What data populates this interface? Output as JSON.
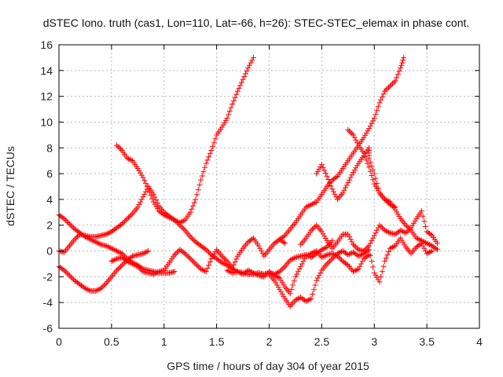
{
  "colors": {
    "series": "#ff0000",
    "axis": "#000000",
    "grid": "#b8b8b8"
  },
  "chart_data": {
    "type": "scatter",
    "title": "dSTEC Iono. truth (cas1, Lon=110, Lat=-66, h=26): STEC-STEC_elemax in phase cont.",
    "xlabel": "GPS time / hours of day 304 of year 2015",
    "ylabel": "dSTEC  / TECUs",
    "xlim": [
      0,
      4
    ],
    "ylim": [
      -6,
      16
    ],
    "xticks": [
      0,
      0.5,
      1,
      1.5,
      2,
      2.5,
      3,
      3.5,
      4
    ],
    "xtick_labels": [
      "0",
      "0.5",
      "1",
      "1.5",
      "2",
      "2.5",
      "3",
      "3.5",
      "4"
    ],
    "yticks": [
      -6,
      -4,
      -2,
      0,
      2,
      4,
      6,
      8,
      10,
      12,
      14,
      16
    ],
    "ytick_labels": [
      "-6",
      "-4",
      "-2",
      "0",
      "2",
      "4",
      "6",
      "8",
      "10",
      "12",
      "14",
      "16"
    ],
    "grid": true,
    "marker": "plus",
    "series": [
      {
        "points": [
          [
            0.0,
            2.8
          ],
          [
            0.05,
            2.5
          ],
          [
            0.1,
            2.1
          ],
          [
            0.15,
            1.7
          ],
          [
            0.2,
            1.4
          ],
          [
            0.25,
            1.1
          ],
          [
            0.3,
            0.9
          ],
          [
            0.35,
            0.7
          ],
          [
            0.4,
            0.5
          ],
          [
            0.45,
            0.4
          ],
          [
            0.5,
            0.2
          ],
          [
            0.55,
            0.0
          ],
          [
            0.6,
            -0.2
          ],
          [
            0.65,
            -0.6
          ],
          [
            0.7,
            -0.9
          ],
          [
            0.75,
            -1.1
          ],
          [
            0.8,
            -1.4
          ],
          [
            0.85,
            -1.5
          ],
          [
            0.9,
            -1.6
          ],
          [
            0.95,
            -1.7
          ],
          [
            1.0,
            -1.7
          ],
          [
            1.05,
            -1.7
          ],
          [
            1.1,
            -1.6
          ]
        ]
      },
      {
        "points": [
          [
            0.0,
            -1.2
          ],
          [
            0.05,
            -1.5
          ],
          [
            0.1,
            -1.9
          ],
          [
            0.15,
            -2.3
          ],
          [
            0.2,
            -2.6
          ],
          [
            0.25,
            -2.9
          ],
          [
            0.3,
            -3.1
          ],
          [
            0.35,
            -3.1
          ],
          [
            0.4,
            -2.9
          ],
          [
            0.45,
            -2.5
          ],
          [
            0.5,
            -2.0
          ],
          [
            0.55,
            -1.5
          ],
          [
            0.6,
            -1.1
          ],
          [
            0.65,
            -0.7
          ],
          [
            0.7,
            -0.4
          ],
          [
            0.75,
            -0.3
          ],
          [
            0.8,
            -0.2
          ],
          [
            0.85,
            0.0
          ]
        ]
      },
      {
        "points": [
          [
            0.0,
            0.0
          ],
          [
            0.05,
            -0.1
          ],
          [
            0.1,
            0.4
          ],
          [
            0.15,
            0.9
          ],
          [
            0.2,
            1.3
          ],
          [
            0.25,
            1.2
          ],
          [
            0.3,
            1.1
          ],
          [
            0.35,
            1.1
          ],
          [
            0.4,
            1.2
          ],
          [
            0.45,
            1.3
          ],
          [
            0.5,
            1.5
          ],
          [
            0.55,
            1.8
          ],
          [
            0.6,
            2.1
          ],
          [
            0.65,
            2.5
          ],
          [
            0.7,
            2.9
          ],
          [
            0.75,
            3.4
          ],
          [
            0.8,
            4.2
          ],
          [
            0.85,
            5.0
          ],
          [
            0.9,
            4.4
          ],
          [
            0.95,
            3.5
          ],
          [
            1.0,
            3.0
          ],
          [
            1.05,
            2.7
          ],
          [
            1.1,
            2.4
          ],
          [
            1.15,
            2.2
          ],
          [
            1.2,
            2.4
          ],
          [
            1.25,
            3.0
          ],
          [
            1.3,
            4.0
          ],
          [
            1.35,
            5.5
          ],
          [
            1.4,
            6.8
          ],
          [
            1.45,
            7.8
          ],
          [
            1.5,
            9.0
          ],
          [
            1.55,
            9.6
          ],
          [
            1.6,
            10.3
          ],
          [
            1.65,
            11.4
          ],
          [
            1.7,
            12.4
          ],
          [
            1.75,
            13.3
          ],
          [
            1.8,
            14.2
          ],
          [
            1.85,
            15.0
          ]
        ]
      },
      {
        "points": [
          [
            0.55,
            8.2
          ],
          [
            0.6,
            7.8
          ],
          [
            0.65,
            7.2
          ],
          [
            0.7,
            7.0
          ],
          [
            0.75,
            6.4
          ],
          [
            0.8,
            5.7
          ],
          [
            0.85,
            4.8
          ],
          [
            0.9,
            3.8
          ],
          [
            0.95,
            3.1
          ],
          [
            1.0,
            2.8
          ],
          [
            1.05,
            2.6
          ],
          [
            1.1,
            2.4
          ],
          [
            1.15,
            2.0
          ],
          [
            1.2,
            1.6
          ],
          [
            1.25,
            1.1
          ],
          [
            1.3,
            0.7
          ],
          [
            1.35,
            0.4
          ],
          [
            1.4,
            0.1
          ],
          [
            1.45,
            -0.3
          ],
          [
            1.5,
            -0.6
          ],
          [
            1.55,
            -0.9
          ],
          [
            1.6,
            -1.1
          ],
          [
            1.65,
            -1.4
          ],
          [
            1.7,
            -1.6
          ],
          [
            1.75,
            -1.7
          ],
          [
            1.8,
            -1.8
          ],
          [
            1.85,
            -1.8
          ],
          [
            1.9,
            -1.7
          ],
          [
            1.95,
            -1.8
          ],
          [
            2.0,
            -1.7
          ],
          [
            2.05,
            -1.8
          ],
          [
            2.1,
            -1.6
          ],
          [
            2.15,
            -1.2
          ],
          [
            2.2,
            -0.7
          ],
          [
            2.25,
            -0.5
          ],
          [
            2.3,
            -0.4
          ],
          [
            2.35,
            -0.3
          ],
          [
            2.4,
            -0.5
          ],
          [
            2.45,
            -0.2
          ],
          [
            2.5,
            0.1
          ],
          [
            2.55,
            0.3
          ],
          [
            2.6,
            0.8
          ]
        ]
      },
      {
        "points": [
          [
            0.5,
            -0.8
          ],
          [
            0.55,
            -0.6
          ],
          [
            0.6,
            -0.5
          ],
          [
            0.65,
            -0.8
          ],
          [
            0.7,
            -1.0
          ],
          [
            0.75,
            -1.2
          ],
          [
            0.8,
            -1.6
          ],
          [
            0.85,
            -1.7
          ],
          [
            0.9,
            -1.8
          ],
          [
            0.95,
            -1.6
          ],
          [
            1.0,
            -1.5
          ],
          [
            1.05,
            -0.9
          ],
          [
            1.1,
            -0.3
          ],
          [
            1.15,
            0.1
          ],
          [
            1.2,
            -0.2
          ],
          [
            1.25,
            -0.6
          ],
          [
            1.3,
            -1.0
          ],
          [
            1.35,
            -1.4
          ],
          [
            1.4,
            -1.6
          ],
          [
            1.45,
            -0.6
          ],
          [
            1.5,
            0.1
          ],
          [
            1.55,
            -0.4
          ],
          [
            1.6,
            -0.8
          ],
          [
            1.65,
            -1.3
          ],
          [
            1.7,
            -0.4
          ],
          [
            1.75,
            0.2
          ],
          [
            1.8,
            0.7
          ],
          [
            1.85,
            1.0
          ],
          [
            1.9,
            0.4
          ],
          [
            1.95,
            -0.4
          ],
          [
            2.0,
            0.1
          ],
          [
            2.05,
            0.6
          ],
          [
            2.1,
            0.9
          ],
          [
            2.15,
            0.6
          ]
        ]
      },
      {
        "points": [
          [
            2.1,
            0.9
          ],
          [
            2.15,
            1.2
          ],
          [
            2.2,
            1.7
          ],
          [
            2.25,
            2.2
          ],
          [
            2.3,
            2.8
          ],
          [
            2.35,
            3.4
          ],
          [
            2.4,
            3.6
          ],
          [
            2.45,
            3.8
          ],
          [
            2.5,
            4.4
          ],
          [
            2.55,
            5.0
          ],
          [
            2.6,
            5.5
          ],
          [
            2.65,
            5.8
          ],
          [
            2.7,
            6.4
          ],
          [
            2.75,
            7.0
          ],
          [
            2.8,
            7.6
          ],
          [
            2.85,
            8.2
          ],
          [
            2.9,
            8.8
          ],
          [
            2.95,
            9.5
          ],
          [
            3.0,
            10.3
          ],
          [
            3.05,
            11.5
          ],
          [
            3.1,
            12.4
          ],
          [
            3.15,
            12.8
          ],
          [
            3.2,
            13.2
          ],
          [
            3.25,
            14.2
          ],
          [
            3.28,
            15.0
          ]
        ]
      },
      {
        "points": [
          [
            2.45,
            6.0
          ],
          [
            2.5,
            6.7
          ],
          [
            2.55,
            5.8
          ],
          [
            2.6,
            4.8
          ],
          [
            2.65,
            4.0
          ],
          [
            2.7,
            4.5
          ],
          [
            2.75,
            5.3
          ],
          [
            2.8,
            6.1
          ],
          [
            2.85,
            6.8
          ],
          [
            2.9,
            7.4
          ],
          [
            2.95,
            8.0
          ],
          [
            2.95,
            7.2
          ],
          [
            3.0,
            6.0
          ],
          [
            3.05,
            4.5
          ],
          [
            3.1,
            4.0
          ],
          [
            3.15,
            3.8
          ],
          [
            3.2,
            3.2
          ],
          [
            3.25,
            2.5
          ],
          [
            3.3,
            2.0
          ],
          [
            3.35,
            1.6
          ],
          [
            3.4,
            1.0
          ],
          [
            3.45,
            0.8
          ],
          [
            3.5,
            0.6
          ],
          [
            3.55,
            0.4
          ],
          [
            3.6,
            0.1
          ]
        ]
      },
      {
        "points": [
          [
            2.75,
            9.4
          ],
          [
            2.8,
            9.0
          ],
          [
            2.85,
            8.2
          ],
          [
            2.9,
            7.6
          ],
          [
            2.95,
            6.5
          ],
          [
            3.0,
            5.2
          ],
          [
            3.05,
            4.5
          ],
          [
            3.1,
            4.0
          ],
          [
            3.15,
            3.6
          ],
          [
            3.2,
            3.4
          ]
        ]
      },
      {
        "points": [
          [
            2.3,
            0.5
          ],
          [
            2.35,
            1.0
          ],
          [
            2.4,
            1.6
          ],
          [
            2.45,
            2.0
          ],
          [
            2.5,
            1.5
          ],
          [
            2.55,
            0.8
          ],
          [
            2.6,
            0.2
          ],
          [
            2.65,
            0.7
          ],
          [
            2.7,
            1.3
          ],
          [
            2.75,
            1.3
          ],
          [
            2.8,
            0.5
          ],
          [
            2.85,
            0.1
          ],
          [
            2.9,
            0.0
          ],
          [
            2.95,
            0.4
          ],
          [
            3.0,
            1.2
          ],
          [
            3.05,
            2.0
          ],
          [
            3.1,
            1.6
          ],
          [
            3.15,
            1.4
          ],
          [
            3.2,
            1.3
          ],
          [
            3.25,
            1.6
          ],
          [
            3.3,
            1.4
          ],
          [
            3.35,
            1.8
          ],
          [
            3.4,
            2.5
          ],
          [
            3.45,
            3.1
          ],
          [
            3.5,
            1.5
          ],
          [
            3.55,
            1.2
          ],
          [
            3.6,
            0.6
          ]
        ]
      },
      {
        "points": [
          [
            2.0,
            -1.8
          ],
          [
            2.05,
            -2.3
          ],
          [
            2.1,
            -3.0
          ],
          [
            2.15,
            -3.7
          ],
          [
            2.2,
            -4.3
          ],
          [
            2.25,
            -3.8
          ],
          [
            2.3,
            -3.6
          ],
          [
            2.35,
            -3.9
          ],
          [
            2.4,
            -3.7
          ],
          [
            2.45,
            -2.3
          ],
          [
            2.5,
            -1.5
          ],
          [
            2.55,
            -1.0
          ],
          [
            2.6,
            -0.6
          ],
          [
            2.65,
            -0.2
          ],
          [
            2.7,
            0.0
          ],
          [
            2.75,
            -0.3
          ],
          [
            2.8,
            -0.1
          ],
          [
            2.85,
            -0.4
          ],
          [
            2.9,
            -0.2
          ],
          [
            2.95,
            0.1
          ],
          [
            3.0,
            -1.7
          ],
          [
            3.05,
            -2.4
          ],
          [
            3.1,
            -0.8
          ],
          [
            3.15,
            0.2
          ],
          [
            3.2,
            0.4
          ],
          [
            3.25,
            1.0
          ],
          [
            3.3,
            0.3
          ],
          [
            3.35,
            -0.2
          ],
          [
            3.4,
            0.3
          ],
          [
            3.45,
            0.6
          ],
          [
            3.5,
            -0.2
          ],
          [
            3.55,
            0.0
          ]
        ]
      },
      {
        "points": [
          [
            1.6,
            -1.5
          ],
          [
            1.65,
            -1.7
          ],
          [
            1.7,
            -1.6
          ],
          [
            1.75,
            -1.8
          ],
          [
            1.8,
            -1.5
          ],
          [
            1.85,
            -1.7
          ],
          [
            1.9,
            -1.9
          ],
          [
            1.95,
            -2.0
          ],
          [
            2.0,
            -1.6
          ],
          [
            2.05,
            -1.9
          ],
          [
            2.1,
            -2.1
          ],
          [
            2.15,
            -2.8
          ],
          [
            2.2,
            -3.3
          ],
          [
            2.25,
            -2.0
          ],
          [
            2.3,
            -1.2
          ],
          [
            2.35,
            -0.4
          ],
          [
            2.4,
            -0.2
          ],
          [
            2.45,
            0.0
          ],
          [
            2.5,
            -0.5
          ],
          [
            2.55,
            -0.3
          ],
          [
            2.6,
            -0.2
          ],
          [
            2.65,
            -0.4
          ],
          [
            2.7,
            -0.8
          ],
          [
            2.75,
            -1.1
          ],
          [
            2.8,
            -1.6
          ],
          [
            2.85,
            -1.4
          ],
          [
            2.9,
            -0.6
          ],
          [
            2.95,
            -0.3
          ]
        ]
      }
    ]
  }
}
